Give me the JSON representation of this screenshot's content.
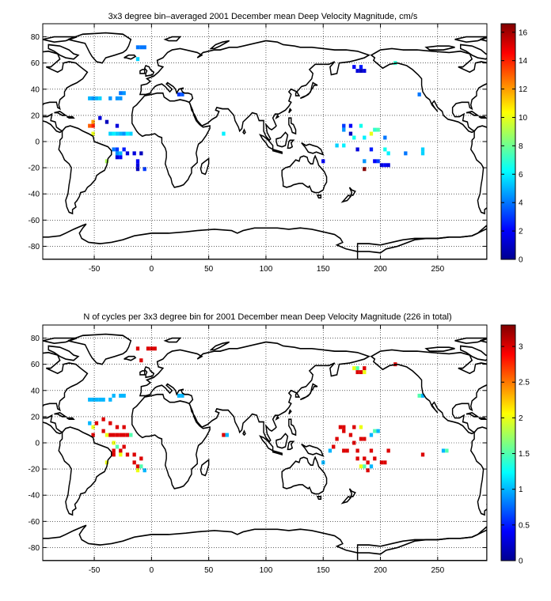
{
  "chart_data": [
    {
      "type": "heatmap",
      "title": "3x3 degree bin–averaged 2001 December mean Deep Velocity Magnitude, cm/s",
      "xlim": [
        -95,
        293
      ],
      "ylim": [
        -90,
        90
      ],
      "x_ticks": [
        -50,
        0,
        50,
        100,
        150,
        200,
        250
      ],
      "y_ticks": [
        -80,
        -60,
        -40,
        -20,
        0,
        20,
        40,
        60,
        80
      ],
      "grid": true,
      "colorbar": {
        "min": 0,
        "max": 16.6,
        "ticks": [
          0,
          2,
          4,
          6,
          8,
          10,
          12,
          14,
          16
        ]
      },
      "bin_size_deg": 3,
      "cells": [
        {
          "lon": -12,
          "lat": 72,
          "v": 4.0
        },
        {
          "lon": -9,
          "lat": 72,
          "v": 4.0
        },
        {
          "lon": -6,
          "lat": 72,
          "v": 4.0
        },
        {
          "lon": -12,
          "lat": 63,
          "v": 5.5
        },
        {
          "lon": -27,
          "lat": 37,
          "v": 4.0
        },
        {
          "lon": -24,
          "lat": 37,
          "v": 4.5
        },
        {
          "lon": -54,
          "lat": 33,
          "v": 5.0
        },
        {
          "lon": -51,
          "lat": 33,
          "v": 4.5
        },
        {
          "lon": -48,
          "lat": 33,
          "v": 5.0
        },
        {
          "lon": -45,
          "lat": 33,
          "v": 5.5
        },
        {
          "lon": -36,
          "lat": 33,
          "v": 4.5
        },
        {
          "lon": -30,
          "lat": 33,
          "v": 4.5
        },
        {
          "lon": -27,
          "lat": 33,
          "v": 4.5
        },
        {
          "lon": 24,
          "lat": 36,
          "v": 3.0
        },
        {
          "lon": 27,
          "lat": 36,
          "v": 3.5
        },
        {
          "lon": -51,
          "lat": 15,
          "v": 12.0
        },
        {
          "lon": -54,
          "lat": 12,
          "v": 13.0
        },
        {
          "lon": -51,
          "lat": 12,
          "v": 14.0
        },
        {
          "lon": -51,
          "lat": 6,
          "v": 10.0
        },
        {
          "lon": -45,
          "lat": 18,
          "v": 1.5
        },
        {
          "lon": -39,
          "lat": 15,
          "v": 1.0
        },
        {
          "lon": -30,
          "lat": 12,
          "v": 1.5
        },
        {
          "lon": -36,
          "lat": 6,
          "v": 5.5
        },
        {
          "lon": -33,
          "lat": 6,
          "v": 6.0
        },
        {
          "lon": -30,
          "lat": 6,
          "v": 5.5
        },
        {
          "lon": -27,
          "lat": 6,
          "v": 5.0
        },
        {
          "lon": -24,
          "lat": 6,
          "v": 4.5
        },
        {
          "lon": -21,
          "lat": 6,
          "v": 6.0
        },
        {
          "lon": -18,
          "lat": 6,
          "v": 5.5
        },
        {
          "lon": -33,
          "lat": -6,
          "v": 4.0
        },
        {
          "lon": -30,
          "lat": -6,
          "v": 3.0
        },
        {
          "lon": -24,
          "lat": -6,
          "v": 2.5
        },
        {
          "lon": -30,
          "lat": -9,
          "v": 4.5
        },
        {
          "lon": -27,
          "lat": -9,
          "v": 5.0
        },
        {
          "lon": -21,
          "lat": -9,
          "v": 1.5
        },
        {
          "lon": -15,
          "lat": -9,
          "v": 1.5
        },
        {
          "lon": -9,
          "lat": -9,
          "v": 1.0
        },
        {
          "lon": -30,
          "lat": -12,
          "v": 1.5
        },
        {
          "lon": -27,
          "lat": -12,
          "v": 2.0
        },
        {
          "lon": -39,
          "lat": -15,
          "v": 9.0
        },
        {
          "lon": -12,
          "lat": -15,
          "v": 2.0
        },
        {
          "lon": -12,
          "lat": -18,
          "v": 1.5
        },
        {
          "lon": -12,
          "lat": -21,
          "v": 1.0
        },
        {
          "lon": -6,
          "lat": -21,
          "v": 3.0
        },
        {
          "lon": 63,
          "lat": 6,
          "v": 6.0
        },
        {
          "lon": 177,
          "lat": 57,
          "v": 2.0
        },
        {
          "lon": 183,
          "lat": 57,
          "v": 2.5
        },
        {
          "lon": 180,
          "lat": 54,
          "v": 1.5
        },
        {
          "lon": 183,
          "lat": 54,
          "v": 1.0
        },
        {
          "lon": 186,
          "lat": 54,
          "v": 1.5
        },
        {
          "lon": 213,
          "lat": 60,
          "v": 7.0
        },
        {
          "lon": 234,
          "lat": 36,
          "v": 4.0
        },
        {
          "lon": 168,
          "lat": 12,
          "v": 3.0
        },
        {
          "lon": 174,
          "lat": 12,
          "v": 2.0
        },
        {
          "lon": 183,
          "lat": 12,
          "v": 6.5
        },
        {
          "lon": 195,
          "lat": 9,
          "v": 7.0
        },
        {
          "lon": 198,
          "lat": 9,
          "v": 7.5
        },
        {
          "lon": 168,
          "lat": 9,
          "v": 4.5
        },
        {
          "lon": 174,
          "lat": 6,
          "v": 1.0
        },
        {
          "lon": 192,
          "lat": 6,
          "v": 10.0
        },
        {
          "lon": 204,
          "lat": 3,
          "v": 4.0
        },
        {
          "lon": 177,
          "lat": 3,
          "v": 6.5
        },
        {
          "lon": 186,
          "lat": 3,
          "v": 6.0
        },
        {
          "lon": 162,
          "lat": -3,
          "v": 5.5
        },
        {
          "lon": 168,
          "lat": -3,
          "v": 6.0
        },
        {
          "lon": 204,
          "lat": -6,
          "v": 6.5
        },
        {
          "lon": 180,
          "lat": -6,
          "v": 1.5
        },
        {
          "lon": 192,
          "lat": -6,
          "v": 2.5
        },
        {
          "lon": 237,
          "lat": -6,
          "v": 5.5
        },
        {
          "lon": 237,
          "lat": -9,
          "v": 5.5
        },
        {
          "lon": 207,
          "lat": -9,
          "v": 6.0
        },
        {
          "lon": 222,
          "lat": -9,
          "v": 4.0
        },
        {
          "lon": 150,
          "lat": -15,
          "v": 2.0
        },
        {
          "lon": 186,
          "lat": -15,
          "v": 4.5
        },
        {
          "lon": 195,
          "lat": -15,
          "v": 2.0
        },
        {
          "lon": 198,
          "lat": -15,
          "v": 3.0
        },
        {
          "lon": 204,
          "lat": -18,
          "v": 2.0
        },
        {
          "lon": 207,
          "lat": -18,
          "v": 1.5
        },
        {
          "lon": 186,
          "lat": -21,
          "v": 16.5
        },
        {
          "lon": 201,
          "lat": -18,
          "v": 1.5
        }
      ]
    },
    {
      "type": "heatmap",
      "title": "N of cycles per 3x3 degree bin for 2001 December mean Deep Velocity Magnitude (226 in total)",
      "xlim": [
        -95,
        293
      ],
      "ylim": [
        -90,
        90
      ],
      "x_ticks": [
        -50,
        0,
        50,
        100,
        150,
        200,
        250
      ],
      "y_ticks": [
        -80,
        -60,
        -40,
        -20,
        0,
        20,
        40,
        60,
        80
      ],
      "grid": true,
      "colorbar": {
        "min": 0,
        "max": 3.3,
        "ticks": [
          0,
          0.5,
          1,
          1.5,
          2,
          2.5,
          3
        ]
      },
      "bin_size_deg": 3,
      "cells": [
        {
          "lon": -12,
          "lat": 72,
          "v": 3
        },
        {
          "lon": -3,
          "lat": 72,
          "v": 3
        },
        {
          "lon": 0,
          "lat": 72,
          "v": 3
        },
        {
          "lon": 3,
          "lat": 72,
          "v": 3
        },
        {
          "lon": -9,
          "lat": 63,
          "v": 3
        },
        {
          "lon": -54,
          "lat": 33,
          "v": 1
        },
        {
          "lon": -51,
          "lat": 33,
          "v": 1
        },
        {
          "lon": -48,
          "lat": 33,
          "v": 1
        },
        {
          "lon": -45,
          "lat": 33,
          "v": 1
        },
        {
          "lon": -42,
          "lat": 33,
          "v": 1
        },
        {
          "lon": -36,
          "lat": 33,
          "v": 1
        },
        {
          "lon": -33,
          "lat": 36,
          "v": 1
        },
        {
          "lon": -27,
          "lat": 36,
          "v": 1
        },
        {
          "lon": -24,
          "lat": 36,
          "v": 1
        },
        {
          "lon": 24,
          "lat": 36,
          "v": 1
        },
        {
          "lon": 27,
          "lat": 36,
          "v": 1
        },
        {
          "lon": -54,
          "lat": 15,
          "v": 1
        },
        {
          "lon": -42,
          "lat": 18,
          "v": 3
        },
        {
          "lon": -36,
          "lat": 15,
          "v": 3
        },
        {
          "lon": -30,
          "lat": 12,
          "v": 3
        },
        {
          "lon": -48,
          "lat": 15,
          "v": 3
        },
        {
          "lon": -24,
          "lat": 12,
          "v": 3
        },
        {
          "lon": -51,
          "lat": 12,
          "v": 2
        },
        {
          "lon": -51,
          "lat": 6,
          "v": 3
        },
        {
          "lon": -42,
          "lat": 9,
          "v": 3
        },
        {
          "lon": -36,
          "lat": 6,
          "v": 3
        },
        {
          "lon": -33,
          "lat": 6,
          "v": 3
        },
        {
          "lon": -30,
          "lat": 6,
          "v": 3
        },
        {
          "lon": -27,
          "lat": 6,
          "v": 3
        },
        {
          "lon": -24,
          "lat": 6,
          "v": 3
        },
        {
          "lon": -21,
          "lat": 6,
          "v": 3
        },
        {
          "lon": -18,
          "lat": 6,
          "v": 1.5
        },
        {
          "lon": -39,
          "lat": 6,
          "v": 2
        },
        {
          "lon": -33,
          "lat": 0,
          "v": 2
        },
        {
          "lon": -30,
          "lat": -3,
          "v": 1.5
        },
        {
          "lon": -24,
          "lat": -3,
          "v": 3
        },
        {
          "lon": -33,
          "lat": -6,
          "v": 3
        },
        {
          "lon": -27,
          "lat": -6,
          "v": 3
        },
        {
          "lon": -33,
          "lat": -9,
          "v": 3
        },
        {
          "lon": -27,
          "lat": -9,
          "v": 2
        },
        {
          "lon": -21,
          "lat": -9,
          "v": 3
        },
        {
          "lon": -15,
          "lat": -9,
          "v": 3
        },
        {
          "lon": -9,
          "lat": -12,
          "v": 3
        },
        {
          "lon": -39,
          "lat": -15,
          "v": 2
        },
        {
          "lon": -15,
          "lat": -15,
          "v": 3
        },
        {
          "lon": -12,
          "lat": -18,
          "v": 3
        },
        {
          "lon": -9,
          "lat": -18,
          "v": 1.5
        },
        {
          "lon": -12,
          "lat": -21,
          "v": 2
        },
        {
          "lon": -6,
          "lat": -21,
          "v": 1
        },
        {
          "lon": 63,
          "lat": 6,
          "v": 3
        },
        {
          "lon": 66,
          "lat": 6,
          "v": 1
        },
        {
          "lon": 180,
          "lat": 57,
          "v": 1.5
        },
        {
          "lon": 177,
          "lat": 57,
          "v": 2
        },
        {
          "lon": 186,
          "lat": 57,
          "v": 3
        },
        {
          "lon": 180,
          "lat": 54,
          "v": 3
        },
        {
          "lon": 183,
          "lat": 54,
          "v": 3
        },
        {
          "lon": 186,
          "lat": 54,
          "v": 2
        },
        {
          "lon": 213,
          "lat": 60,
          "v": 3
        },
        {
          "lon": 234,
          "lat": 36,
          "v": 1.5
        },
        {
          "lon": 237,
          "lat": 36,
          "v": 1
        },
        {
          "lon": 165,
          "lat": 12,
          "v": 3
        },
        {
          "lon": 168,
          "lat": 12,
          "v": 3
        },
        {
          "lon": 177,
          "lat": 12,
          "v": 3
        },
        {
          "lon": 183,
          "lat": 12,
          "v": 2
        },
        {
          "lon": 198,
          "lat": 9,
          "v": 1
        },
        {
          "lon": 195,
          "lat": 9,
          "v": 1.5
        },
        {
          "lon": 168,
          "lat": 9,
          "v": 3
        },
        {
          "lon": 174,
          "lat": 6,
          "v": 3
        },
        {
          "lon": 192,
          "lat": 6,
          "v": 1
        },
        {
          "lon": 162,
          "lat": 3,
          "v": 3
        },
        {
          "lon": 183,
          "lat": 3,
          "v": 3
        },
        {
          "lon": 186,
          "lat": 3,
          "v": 3
        },
        {
          "lon": 177,
          "lat": 0,
          "v": 3
        },
        {
          "lon": 156,
          "lat": -6,
          "v": 1
        },
        {
          "lon": 159,
          "lat": -3,
          "v": 3
        },
        {
          "lon": 168,
          "lat": -6,
          "v": 3
        },
        {
          "lon": 171,
          "lat": -6,
          "v": 3
        },
        {
          "lon": 180,
          "lat": -6,
          "v": 3
        },
        {
          "lon": 192,
          "lat": -6,
          "v": 3
        },
        {
          "lon": 207,
          "lat": -6,
          "v": 3
        },
        {
          "lon": 237,
          "lat": -9,
          "v": 3
        },
        {
          "lon": 255,
          "lat": -6,
          "v": 1
        },
        {
          "lon": 258,
          "lat": -6,
          "v": 1.5
        },
        {
          "lon": 150,
          "lat": -15,
          "v": 1
        },
        {
          "lon": 180,
          "lat": -12,
          "v": 3
        },
        {
          "lon": 186,
          "lat": -12,
          "v": 3
        },
        {
          "lon": 195,
          "lat": -12,
          "v": 3
        },
        {
          "lon": 201,
          "lat": -15,
          "v": 3
        },
        {
          "lon": 204,
          "lat": -15,
          "v": 3
        },
        {
          "lon": 189,
          "lat": -15,
          "v": 3
        },
        {
          "lon": 192,
          "lat": -18,
          "v": 1
        },
        {
          "lon": 186,
          "lat": -18,
          "v": 1.5
        },
        {
          "lon": 183,
          "lat": -18,
          "v": 2
        },
        {
          "lon": 189,
          "lat": -21,
          "v": 3
        }
      ]
    }
  ]
}
